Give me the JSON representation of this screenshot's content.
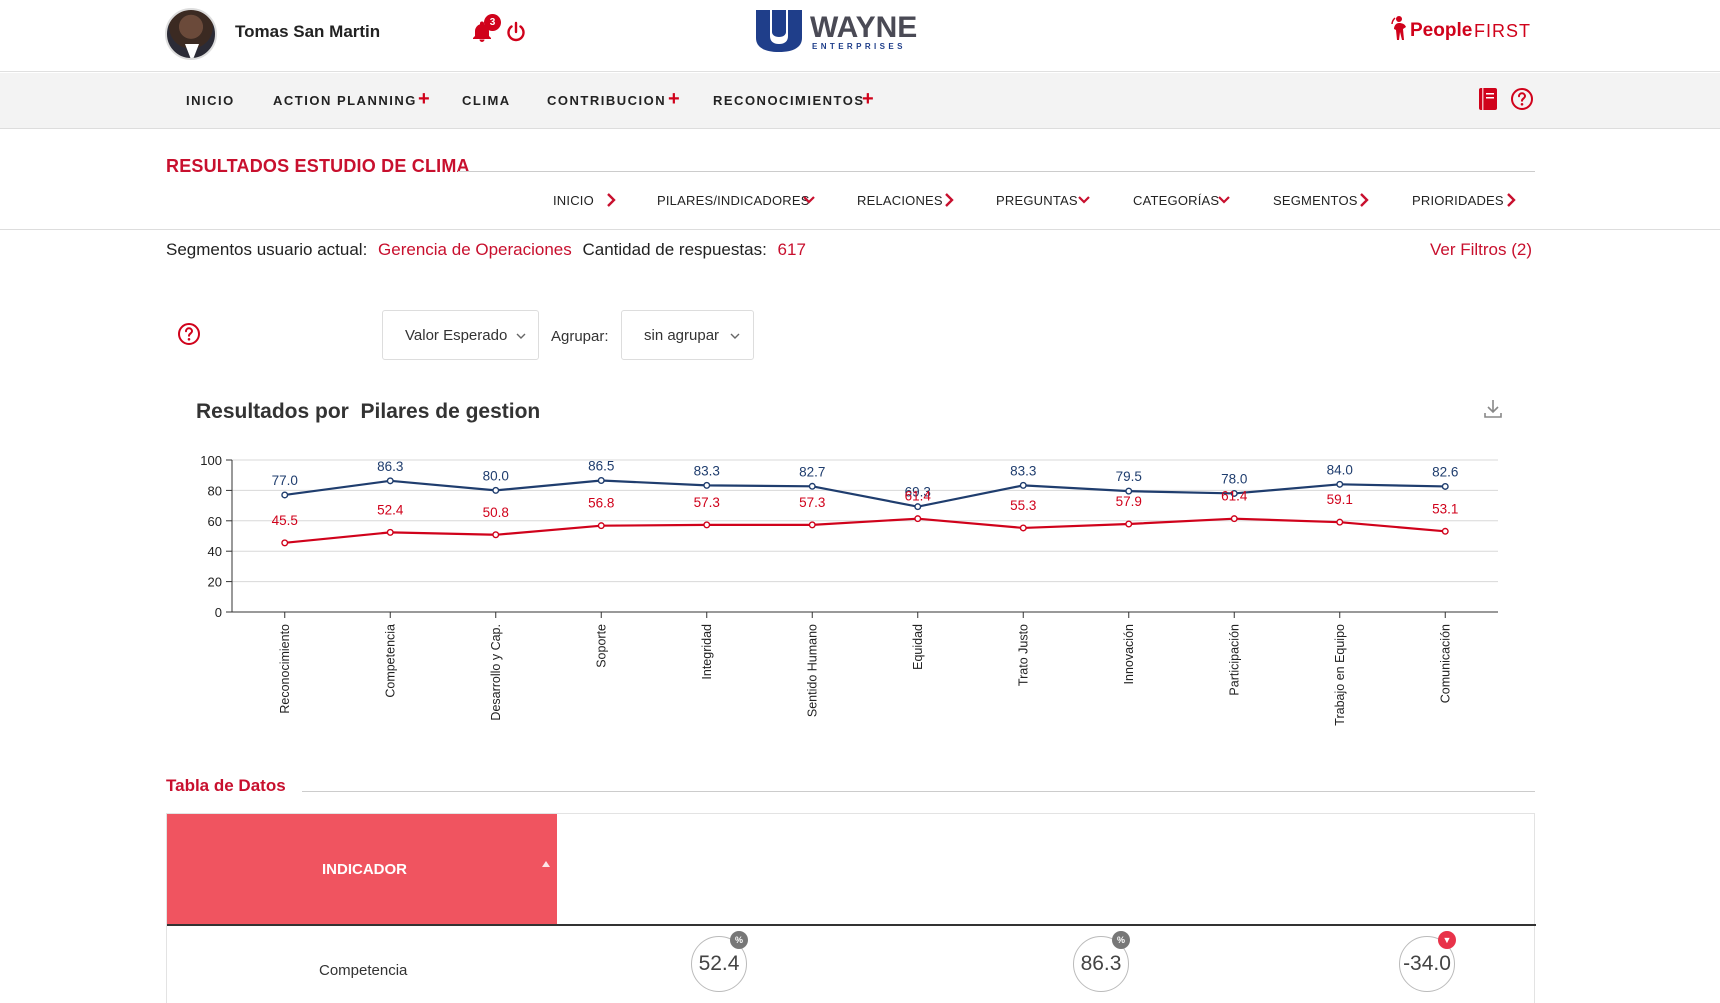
{
  "header": {
    "username": "Tomas San Martin",
    "notification_count": "3",
    "brand_left": {
      "name": "WAYNE",
      "sub": "ENTERPRISES"
    },
    "brand_right": {
      "part1": "People",
      "part2": "FIRST"
    }
  },
  "nav": {
    "items": [
      {
        "label": "INICIO",
        "has_plus": false
      },
      {
        "label": "ACTION PLANNING",
        "has_plus": true
      },
      {
        "label": "CLIMA",
        "has_plus": false
      },
      {
        "label": "CONTRIBUCION",
        "has_plus": true
      },
      {
        "label": "RECONOCIMIENTOS",
        "has_plus": true
      }
    ],
    "plus_symbol": "+"
  },
  "page": {
    "title": "RESULTADOS ESTUDIO DE CLIMA",
    "subnav": [
      {
        "label": "INICIO",
        "arrow": "chevron-right"
      },
      {
        "label": "PILARES/INDICADORES",
        "arrow": "chevron-down"
      },
      {
        "label": "RELACIONES",
        "arrow": "chevron-right"
      },
      {
        "label": "PREGUNTAS",
        "arrow": "chevron-down"
      },
      {
        "label": "CATEGORÍAS",
        "arrow": "chevron-down"
      },
      {
        "label": "SEGMENTOS",
        "arrow": "chevron-right"
      },
      {
        "label": "PRIORIDADES",
        "arrow": "chevron-right"
      }
    ],
    "segments_label": "Segmentos usuario actual:",
    "segments_value": "Gerencia de Operaciones",
    "responses_label": "Cantidad de respuestas:",
    "responses_value": "617",
    "filters_link": "Ver Filtros (2)"
  },
  "controls": {
    "metric_select": "Valor Esperado",
    "group_label": "Agrupar:",
    "group_select": "sin agrupar"
  },
  "chart_title": "Resultados por  Pilares de gestion",
  "chart_data": {
    "type": "line",
    "title": "Resultados por  Pilares de gestion",
    "categories": [
      "Reconocimiento",
      "Competencia",
      "Desarrollo y Cap.",
      "Soporte",
      "Integridad",
      "Sentido Humano",
      "Equidad",
      "Trato Justo",
      "Innovación",
      "Participación",
      "Trabajo en Equipo",
      "Comunicación"
    ],
    "series": [
      {
        "values": [
          77.0,
          86.3,
          80.0,
          86.5,
          83.3,
          82.7,
          69.3,
          83.3,
          79.5,
          78.0,
          84.0,
          82.6
        ],
        "color": "#1f3d6e"
      },
      {
        "values": [
          45.5,
          52.4,
          50.8,
          56.8,
          57.3,
          57.3,
          61.4,
          55.3,
          57.9,
          61.4,
          59.1,
          53.1
        ],
        "color": "#d0021b"
      }
    ],
    "ylim": [
      0,
      100
    ],
    "yticks": [
      0,
      20,
      40,
      60,
      80,
      100
    ],
    "grid": true,
    "legend": "none"
  },
  "table": {
    "title": "Tabla de Datos",
    "header_label": "INDICADOR",
    "rows": [
      {
        "label": "Competencia",
        "values": [
          {
            "text": "52.4",
            "badge": "%",
            "badge_color": "#777777"
          },
          {
            "text": "86.3",
            "badge": "%",
            "badge_color": "#777777"
          },
          {
            "text": "-34.0",
            "badge": "▼",
            "badge_color": "#e8334a"
          }
        ]
      }
    ]
  },
  "colors": {
    "accent": "#c8102e",
    "navy": "#1f3d6e",
    "table_header": "#f05460"
  }
}
